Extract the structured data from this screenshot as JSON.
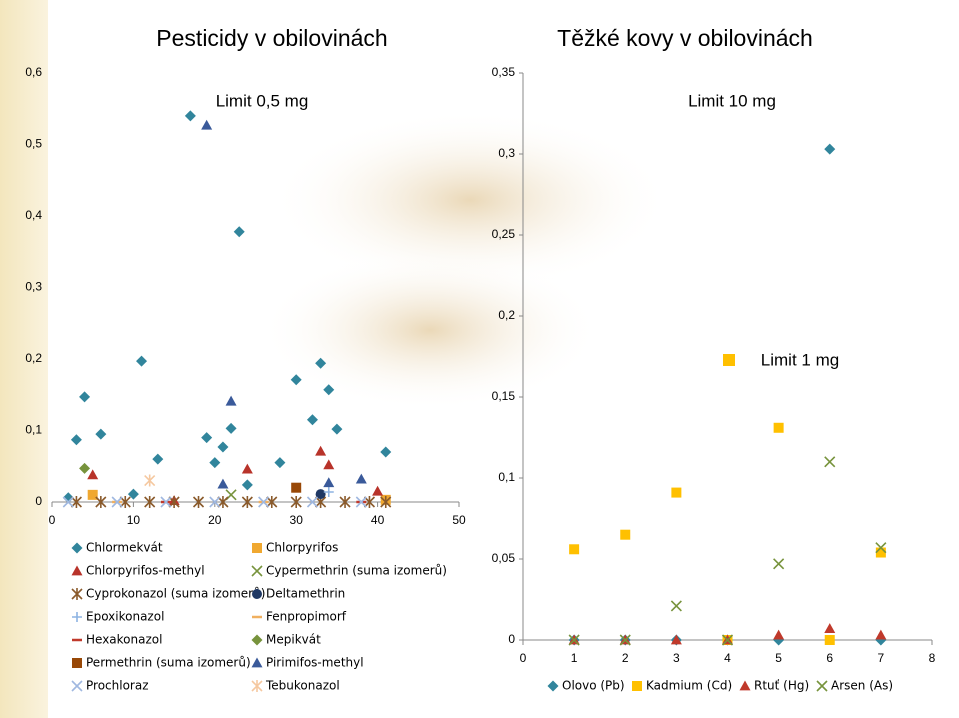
{
  "chart_data": [
    {
      "type": "scatter",
      "title": "Pesticidy v obilovinách",
      "annotations": [
        "Limit 0,5 mg"
      ],
      "xlim": [
        0,
        50
      ],
      "xticks": [
        0,
        10,
        20,
        30,
        40,
        50
      ],
      "ylim": [
        0,
        0.6
      ],
      "yticks": [
        0,
        {
          "value": 0.1,
          "label": "0,1"
        },
        {
          "value": 0.2,
          "label": "0,2"
        },
        {
          "value": 0.3,
          "label": "0,3"
        },
        {
          "value": 0.4,
          "label": "0,4"
        },
        {
          "value": 0.5,
          "label": "0,5"
        },
        {
          "value": 0.6,
          "label": "0,6"
        }
      ],
      "series": [
        {
          "name": "Chlormekvát",
          "marker": "diamond",
          "color": "#31859c",
          "x": [
            17,
            23,
            11,
            4,
            33,
            30,
            34,
            32,
            22,
            35,
            6,
            3,
            19,
            21,
            41,
            13,
            20,
            28,
            24,
            10,
            2
          ],
          "values": [
            0.54,
            0.378,
            0.197,
            0.147,
            0.194,
            0.171,
            0.157,
            0.115,
            0.103,
            0.102,
            0.095,
            0.087,
            0.09,
            0.077,
            0.07,
            0.06,
            0.055,
            0.055,
            0.024,
            0.011,
            0.006
          ]
        },
        {
          "name": "Chlorpyrifos",
          "marker": "square",
          "color": "#f0a830",
          "x": [
            5,
            41
          ],
          "values": [
            0.01,
            0.003
          ]
        },
        {
          "name": "Chlorpyrifos-methyl",
          "marker": "triangle",
          "color": "#b8332a",
          "x": [
            5,
            24,
            33,
            34,
            40,
            15
          ],
          "values": [
            0.038,
            0.046,
            0.071,
            0.052,
            0.015,
            0.002
          ]
        },
        {
          "name": "Cypermethrin (suma izomerů)",
          "marker": "x",
          "color": "#77933c",
          "x": [
            22
          ],
          "values": [
            0.01
          ]
        },
        {
          "name": "Cyprokonazol (suma izomerů)",
          "marker": "star",
          "color": "#8a5a2b",
          "x": [
            3,
            6,
            9,
            12,
            15,
            18,
            21,
            24,
            27,
            30,
            33,
            36,
            39,
            41
          ],
          "values": [
            0,
            0,
            0,
            0,
            0,
            0,
            0,
            0,
            0,
            0,
            0,
            0,
            0,
            0
          ]
        },
        {
          "name": "Deltamethrin",
          "marker": "circle",
          "color": "#1f3864",
          "x": [
            33
          ],
          "values": [
            0.011
          ]
        },
        {
          "name": "Epoxikonazol",
          "marker": "plus",
          "color": "#8db3e2",
          "x": [
            34
          ],
          "values": [
            0.014
          ]
        },
        {
          "name": "Fenpropimorf",
          "marker": "dash",
          "color": "#f0b060",
          "x": [
            8,
            26
          ],
          "values": [
            0,
            0
          ]
        },
        {
          "name": "Hexakonazol",
          "marker": "dash",
          "color": "#c0392b",
          "x": [
            14,
            38
          ],
          "values": [
            0,
            0
          ]
        },
        {
          "name": "Mepikvát",
          "marker": "diamond",
          "color": "#77933c",
          "x": [
            4
          ],
          "values": [
            0.047
          ]
        },
        {
          "name": "Permethrin (suma izomerů)",
          "marker": "square",
          "color": "#984807",
          "x": [
            30
          ],
          "values": [
            0.02
          ]
        },
        {
          "name": "Pirimifos-methyl",
          "marker": "triangle",
          "color": "#3a5a9a",
          "x": [
            19,
            22,
            38,
            34,
            21
          ],
          "values": [
            0.527,
            0.141,
            0.032,
            0.027,
            0.025
          ]
        },
        {
          "name": "Prochloraz",
          "marker": "x",
          "color": "#a0b8e0",
          "x": [
            2,
            8,
            14,
            20,
            26,
            32,
            38
          ],
          "values": [
            0,
            0,
            0,
            0,
            0,
            0,
            0
          ]
        },
        {
          "name": "Tebukonazol",
          "marker": "star",
          "color": "#f5c8a0",
          "x": [
            12
          ],
          "values": [
            0.03
          ]
        }
      ]
    },
    {
      "type": "scatter",
      "title": "Těžké kovy v obilovinách",
      "annotations": [
        "Limit 10 mg",
        "Limit 1 mg"
      ],
      "xlim": [
        0,
        8
      ],
      "xticks": [
        0,
        1,
        2,
        3,
        4,
        5,
        6,
        7,
        8
      ],
      "ylim": [
        0,
        0.35
      ],
      "yticks": [
        0,
        {
          "value": 0.05,
          "label": "0,05"
        },
        {
          "value": 0.1,
          "label": "0,1"
        },
        {
          "value": 0.15,
          "label": "0,15"
        },
        {
          "value": 0.2,
          "label": "0,2"
        },
        {
          "value": 0.25,
          "label": "0,25"
        },
        {
          "value": 0.3,
          "label": "0,3"
        },
        {
          "value": 0.35,
          "label": "0,35"
        }
      ],
      "series": [
        {
          "name": "Olovo (Pb)",
          "marker": "diamond",
          "color": "#31859c",
          "x": [
            1,
            2,
            3,
            4,
            5,
            6,
            7
          ],
          "values": [
            0,
            0,
            0,
            0,
            0,
            0.303,
            0
          ]
        },
        {
          "name": "Kadmium (Cd)",
          "marker": "square",
          "color": "#ffc000",
          "x": [
            1,
            2,
            3,
            4,
            5,
            6,
            7
          ],
          "values": [
            0.056,
            0.065,
            0.091,
            0,
            0.131,
            0,
            0.054
          ]
        },
        {
          "name": "Rtuť (Hg)",
          "marker": "triangle",
          "color": "#c0392b",
          "x": [
            1,
            2,
            3,
            4,
            5,
            6,
            7
          ],
          "values": [
            0,
            0,
            0,
            0,
            0.003,
            0.007,
            0.003
          ]
        },
        {
          "name": "Arsen (As)",
          "marker": "x",
          "color": "#77933c",
          "x": [
            1,
            2,
            3,
            4,
            5,
            6,
            7
          ],
          "values": [
            0,
            0,
            0.021,
            0,
            0.047,
            0.11,
            0.057
          ]
        }
      ]
    }
  ]
}
